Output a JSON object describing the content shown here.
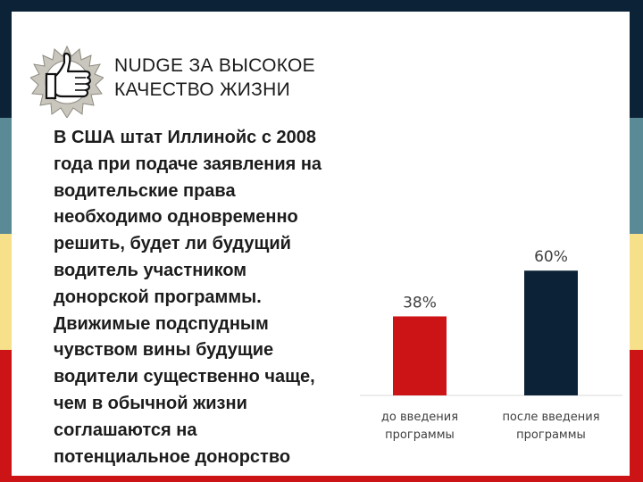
{
  "slide": {
    "title_lines": [
      "NUDGE ЗА ВЫСОКОЕ",
      "КАЧЕСТВО ЖИЗНИ"
    ],
    "body_lines": [
      "В США штат Иллинойс с 2008",
      "года при подаче заявления на",
      "водительские права",
      "необходимо одновременно",
      "решить, будет ли будущий",
      "водитель участником",
      "донорской программы.",
      "Движимые подспудным",
      "чувством вины будущие",
      "водители существенно чаще,",
      "чем в обычной жизни",
      "соглашаются на",
      "потенциальное донорство"
    ],
    "badge_icon": "thumbs-up-icon",
    "colors": {
      "navy": "#0c2237",
      "teal": "#5b8a97",
      "yellow": "#f6e08a",
      "red": "#cc1417",
      "bar_before": "#cc1417",
      "bar_after": "#0c2237"
    }
  },
  "chart_data": {
    "type": "bar",
    "categories": [
      [
        "до введения",
        "программы"
      ],
      [
        "после введения",
        "программы"
      ]
    ],
    "values": [
      38,
      60
    ],
    "data_labels": [
      "38%",
      "60%"
    ],
    "colors": [
      "#cc1417",
      "#0c2237"
    ],
    "ylim": [
      0,
      100
    ],
    "grid": false,
    "legend": "none"
  }
}
